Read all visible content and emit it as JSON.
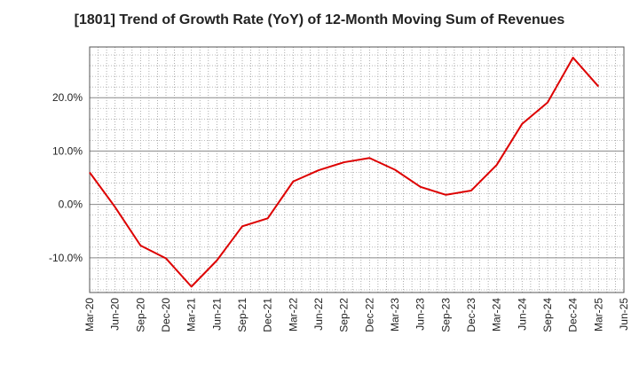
{
  "chart_data": {
    "type": "line",
    "title": "[1801]  Trend of Growth Rate (YoY) of 12-Month Moving Sum of Revenues",
    "xlabel": "",
    "ylabel": "",
    "ylim": [
      -16.5,
      29.5
    ],
    "yticks": [
      -10,
      0,
      10,
      20
    ],
    "ytick_labels": [
      "-10.0%",
      "0.0%",
      "10.0%",
      "20.0%"
    ],
    "x_tick_labels": [
      "Mar-20",
      "Jun-20",
      "Sep-20",
      "Dec-20",
      "Mar-21",
      "Jun-21",
      "Sep-21",
      "Dec-21",
      "Mar-22",
      "Jun-22",
      "Sep-22",
      "Dec-22",
      "Mar-23",
      "Jun-23",
      "Sep-23",
      "Dec-23",
      "Mar-24",
      "Jun-24",
      "Sep-24",
      "Dec-24",
      "Mar-25",
      "Jun-25"
    ],
    "grid": true,
    "line_color": "#dd0000",
    "series": [
      {
        "values": [
          6.0,
          -0.5,
          -7.7,
          -10.1,
          -15.4,
          -10.5,
          -4.1,
          -2.6,
          4.3,
          6.4,
          7.9,
          8.7,
          6.5,
          3.3,
          1.8,
          2.6,
          7.4,
          15.1,
          19.1,
          27.5,
          22.1
        ]
      }
    ]
  }
}
